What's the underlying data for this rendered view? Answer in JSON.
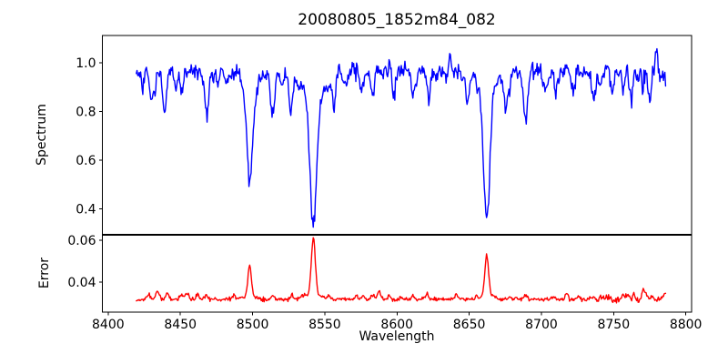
{
  "colors": {
    "background": "#ffffff",
    "axes": "#000000",
    "text": "#000000",
    "spectrum_line": "#0000ff",
    "error_line": "#ff0000"
  },
  "chart_data": {
    "type": "line",
    "title": "20080805_1852m84_082",
    "xlabel": "Wavelength",
    "xlim": [
      8396,
      8804
    ],
    "xticks": [
      8400,
      8450,
      8500,
      8550,
      8600,
      8650,
      8700,
      8750,
      8800
    ],
    "x_start": 8419.5,
    "x_end": 8786,
    "x_step": 0.5,
    "grid": false,
    "legend": "none",
    "panels": [
      {
        "name": "Spectrum",
        "ylabel": "Spectrum",
        "color": "#0000ff",
        "ylim": [
          0.293,
          1.112
        ],
        "yticks": [
          0.4,
          0.6,
          0.8,
          1.0
        ],
        "ytick_labels": [
          "0.4",
          "0.6",
          "0.8",
          "1.0"
        ],
        "continuum": 0.968,
        "noise_sigma": 0.016,
        "noise_boost": {
          "from": 8745,
          "factor": 1.4
        },
        "seed": 20080805,
        "micro": {
          "count": 48,
          "amp_min": 0.015,
          "amp_max": 0.055,
          "sigma_min": 0.5,
          "sigma_max": 1.3,
          "sign": -1
        },
        "absorption_lines": [
          {
            "center": 8424,
            "depth": 0.06,
            "sigma": 1.0
          },
          {
            "center": 8430,
            "depth": 0.12,
            "sigma": 1.2
          },
          {
            "center": 8439,
            "depth": 0.16,
            "sigma": 1.3
          },
          {
            "center": 8447,
            "depth": 0.07,
            "sigma": 1.0
          },
          {
            "center": 8451,
            "depth": 0.08,
            "sigma": 1.0
          },
          {
            "center": 8468,
            "depth": 0.17,
            "sigma": 1.4
          },
          {
            "center": 8476,
            "depth": 0.06,
            "sigma": 1.0
          },
          {
            "center": 8498.03,
            "depth": 0.41,
            "sigma": 1.9,
            "wing_depth": 0.05,
            "wing_sigma": 6
          },
          {
            "center": 8514,
            "depth": 0.19,
            "sigma": 1.3
          },
          {
            "center": 8526,
            "depth": 0.1,
            "sigma": 1.1
          },
          {
            "center": 8542.09,
            "depth": 0.57,
            "sigma": 2.4,
            "wing_depth": 0.07,
            "wing_sigma": 9
          },
          {
            "center": 8556,
            "depth": 0.08,
            "sigma": 1.0
          },
          {
            "center": 8575,
            "depth": 0.07,
            "sigma": 1.0
          },
          {
            "center": 8583,
            "depth": 0.11,
            "sigma": 1.1
          },
          {
            "center": 8598,
            "depth": 0.09,
            "sigma": 1.0
          },
          {
            "center": 8611,
            "depth": 0.1,
            "sigma": 1.1
          },
          {
            "center": 8622,
            "depth": 0.09,
            "sigma": 1.0
          },
          {
            "center": 8648,
            "depth": 0.08,
            "sigma": 1.0
          },
          {
            "center": 8662.14,
            "depth": 0.54,
            "sigma": 2.2,
            "wing_depth": 0.06,
            "wing_sigma": 8
          },
          {
            "center": 8675,
            "depth": 0.11,
            "sigma": 1.1
          },
          {
            "center": 8689,
            "depth": 0.2,
            "sigma": 1.5
          },
          {
            "center": 8702,
            "depth": 0.07,
            "sigma": 1.0
          },
          {
            "center": 8710,
            "depth": 0.1,
            "sigma": 1.0
          },
          {
            "center": 8722,
            "depth": 0.07,
            "sigma": 1.0
          },
          {
            "center": 8736,
            "depth": 0.08,
            "sigma": 1.0
          },
          {
            "center": 8749,
            "depth": 0.07,
            "sigma": 1.0
          },
          {
            "center": 8757,
            "depth": 0.09,
            "sigma": 1.0
          },
          {
            "center": 8762,
            "depth": 0.12,
            "sigma": 1.0
          },
          {
            "center": 8770,
            "depth": 0.1,
            "sigma": 1.0
          },
          {
            "center": 8775,
            "depth": 0.13,
            "sigma": 1.0
          }
        ],
        "spikes": [
          {
            "center": 8560,
            "height": 0.05,
            "sigma": 0.7
          },
          {
            "center": 8595,
            "height": 0.09,
            "sigma": 0.7
          },
          {
            "center": 8637,
            "height": 0.06,
            "sigma": 0.7
          },
          {
            "center": 8731,
            "height": 0.05,
            "sigma": 0.7
          },
          {
            "center": 8769,
            "height": 0.07,
            "sigma": 0.7
          },
          {
            "center": 8780,
            "height": 0.1,
            "sigma": 0.8
          }
        ]
      },
      {
        "name": "Error",
        "ylabel": "Error",
        "color": "#ff0000",
        "ylim": [
          0.0257,
          0.0626
        ],
        "yticks": [
          0.04,
          0.06
        ],
        "ytick_labels": [
          "0.04",
          "0.06"
        ],
        "baseline": 0.0318,
        "noise_sigma": 0.00045,
        "noise_boost": {
          "from": 8740,
          "factor": 1.8
        },
        "seed": 1852,
        "micro": {
          "count": 36,
          "amp_min": 0.0006,
          "amp_max": 0.0026,
          "sigma_min": 0.5,
          "sigma_max": 1.2,
          "sign": 1
        },
        "peaks": [
          {
            "center": 8428,
            "height": 0.0028,
            "sigma": 1.1
          },
          {
            "center": 8434,
            "height": 0.0035,
            "sigma": 1.0
          },
          {
            "center": 8441,
            "height": 0.0028,
            "sigma": 1.0
          },
          {
            "center": 8462,
            "height": 0.0022,
            "sigma": 1.0
          },
          {
            "center": 8468,
            "height": 0.0022,
            "sigma": 1.0
          },
          {
            "center": 8498.03,
            "height": 0.0135,
            "sigma": 1.2,
            "wing_height": 0.0012,
            "wing_sigma": 4
          },
          {
            "center": 8514,
            "height": 0.002,
            "sigma": 1.0
          },
          {
            "center": 8542.09,
            "height": 0.027,
            "sigma": 1.4,
            "wing_height": 0.002,
            "wing_sigma": 6
          },
          {
            "center": 8553,
            "height": 0.0015,
            "sigma": 1.0
          },
          {
            "center": 8583,
            "height": 0.0022,
            "sigma": 1.0
          },
          {
            "center": 8611,
            "height": 0.0015,
            "sigma": 1.0
          },
          {
            "center": 8621,
            "height": 0.0018,
            "sigma": 1.0
          },
          {
            "center": 8662.14,
            "height": 0.0195,
            "sigma": 1.3,
            "wing_height": 0.0015,
            "wing_sigma": 5
          },
          {
            "center": 8689,
            "height": 0.002,
            "sigma": 1.2
          },
          {
            "center": 8757,
            "height": 0.0022,
            "sigma": 1.0
          },
          {
            "center": 8764,
            "height": 0.0028,
            "sigma": 1.0
          },
          {
            "center": 8771,
            "height": 0.0022,
            "sigma": 1.0
          }
        ]
      }
    ]
  }
}
